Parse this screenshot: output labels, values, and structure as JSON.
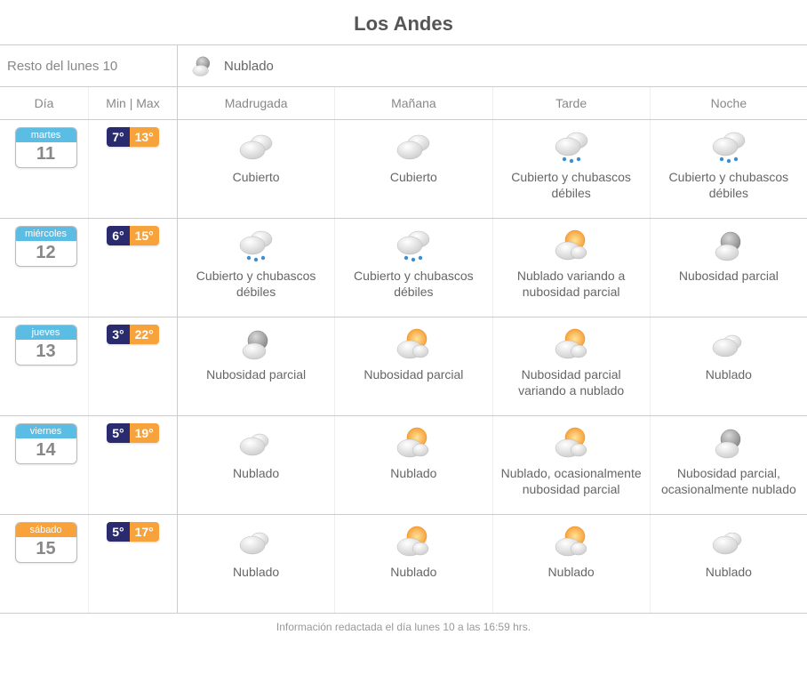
{
  "location_title": "Los Andes",
  "colors": {
    "min_temp_bg": "#2a2a6e",
    "max_temp_bg": "#f7a23b",
    "day_colors": {
      "martes": "#5bbce4",
      "miercoles": "#5bbce4",
      "jueves": "#5bbce4",
      "viernes": "#5bbce4",
      "sabado": "#f7a23b"
    }
  },
  "current": {
    "label": "Resto del lunes 10",
    "condition": "Nublado",
    "icon": "partly-cloudy-night"
  },
  "headers": {
    "day": "Día",
    "temp": "Min | Max",
    "periods": [
      "Madrugada",
      "Mañana",
      "Tarde",
      "Noche"
    ]
  },
  "forecast": [
    {
      "day_name": "martes",
      "day_num": "11",
      "day_color": "#5bbce4",
      "min": "7°",
      "max": "13°",
      "periods": [
        {
          "icon": "overcast",
          "desc": "Cubierto"
        },
        {
          "icon": "overcast",
          "desc": "Cubierto"
        },
        {
          "icon": "showers",
          "desc": "Cubierto y chubascos débiles"
        },
        {
          "icon": "showers",
          "desc": "Cubierto y chubascos débiles"
        }
      ]
    },
    {
      "day_name": "miércoles",
      "day_num": "12",
      "day_color": "#5bbce4",
      "min": "6°",
      "max": "15°",
      "periods": [
        {
          "icon": "showers",
          "desc": "Cubierto y chubascos débiles"
        },
        {
          "icon": "showers",
          "desc": "Cubierto y chubascos débiles"
        },
        {
          "icon": "sun-cloud",
          "desc": "Nublado variando a nubosidad parcial"
        },
        {
          "icon": "partly-cloudy-night",
          "desc": "Nubosidad parcial"
        }
      ]
    },
    {
      "day_name": "jueves",
      "day_num": "13",
      "day_color": "#5bbce4",
      "min": "3°",
      "max": "22°",
      "periods": [
        {
          "icon": "partly-cloudy-night",
          "desc": "Nubosidad parcial"
        },
        {
          "icon": "sun-cloud",
          "desc": "Nubosidad parcial"
        },
        {
          "icon": "sun-cloud",
          "desc": "Nubosidad parcial variando a nublado"
        },
        {
          "icon": "cloudy",
          "desc": "Nublado"
        }
      ]
    },
    {
      "day_name": "viernes",
      "day_num": "14",
      "day_color": "#5bbce4",
      "min": "5°",
      "max": "19°",
      "periods": [
        {
          "icon": "cloudy",
          "desc": "Nublado"
        },
        {
          "icon": "sun-cloud",
          "desc": "Nublado"
        },
        {
          "icon": "sun-cloud",
          "desc": "Nublado, ocasionalmente nubosidad parcial"
        },
        {
          "icon": "partly-cloudy-night",
          "desc": "Nubosidad parcial, ocasionalmente nublado"
        }
      ]
    },
    {
      "day_name": "sábado",
      "day_num": "15",
      "day_color": "#f7a23b",
      "min": "5°",
      "max": "17°",
      "periods": [
        {
          "icon": "cloudy",
          "desc": "Nublado"
        },
        {
          "icon": "sun-cloud",
          "desc": "Nublado"
        },
        {
          "icon": "sun-cloud",
          "desc": "Nublado"
        },
        {
          "icon": "cloudy",
          "desc": "Nublado"
        }
      ]
    }
  ],
  "footer": "Información redactada el día lunes 10 a las 16:59 hrs."
}
